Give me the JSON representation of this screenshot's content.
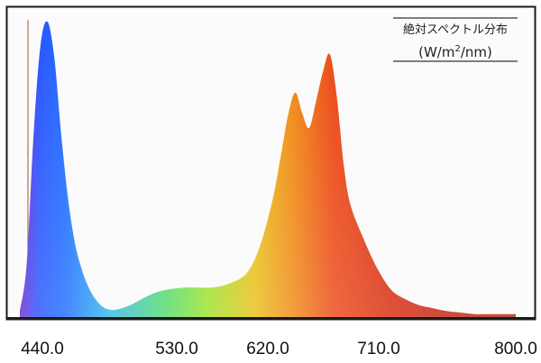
{
  "chart_data": {
    "type": "area",
    "title": "絶対スペクトル分布",
    "unit_parts": [
      "(W/m",
      "2",
      "/nm)"
    ],
    "xlabel": "",
    "ylabel": "",
    "x_ticks": [
      "440.0",
      "530.0",
      "620.0",
      "710.0",
      "800.0"
    ],
    "xlim": [
      440,
      800
    ],
    "ylim": [
      0,
      1
    ],
    "grid": false,
    "legend": "top-right",
    "series": [
      {
        "x": [
          440,
          445,
          450,
          455,
          460,
          465,
          470,
          475,
          480,
          485,
          490,
          495,
          500,
          505,
          510,
          520,
          530,
          540,
          550,
          560,
          570,
          580,
          590,
          600,
          605,
          610,
          615,
          620,
          625,
          630,
          635,
          640,
          645,
          650,
          655,
          660,
          665,
          670,
          675,
          680,
          690,
          700,
          710,
          720,
          730,
          740,
          750,
          760,
          770,
          780,
          790,
          800
        ],
        "values": [
          0.02,
          0.18,
          0.62,
          0.92,
          1.0,
          0.88,
          0.62,
          0.4,
          0.25,
          0.16,
          0.1,
          0.06,
          0.035,
          0.025,
          0.025,
          0.04,
          0.065,
          0.085,
          0.095,
          0.1,
          0.1,
          0.1,
          0.11,
          0.13,
          0.15,
          0.19,
          0.25,
          0.33,
          0.43,
          0.56,
          0.69,
          0.76,
          0.69,
          0.64,
          0.73,
          0.83,
          0.89,
          0.75,
          0.52,
          0.38,
          0.26,
          0.16,
          0.09,
          0.06,
          0.04,
          0.03,
          0.02,
          0.015,
          0.01,
          0.01,
          0.01,
          0.01
        ]
      }
    ]
  }
}
